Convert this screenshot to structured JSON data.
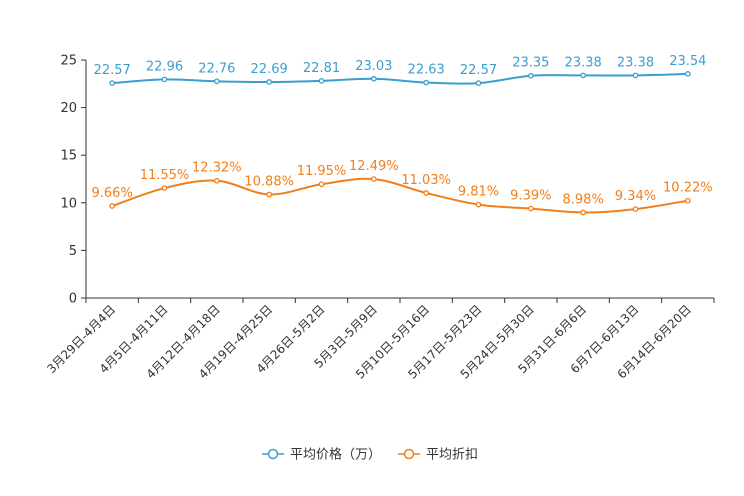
{
  "chart_data": {
    "type": "line",
    "title": "",
    "xlabel": "",
    "ylabel": "",
    "ylim": [
      0,
      25
    ],
    "yticks": [
      0,
      5,
      10,
      15,
      20,
      25
    ],
    "grid": false,
    "legend_position": "bottom-center",
    "categories": [
      "3月29日-4月4日",
      "4月5日-4月11日",
      "4月12日-4月18日",
      "4月19日-4月25日",
      "4月26日-5月2日",
      "5月3日-5月9日",
      "5月10日-5月16日",
      "5月17日-5月23日",
      "5月24日-5月30日",
      "5月31日-6月6日",
      "6月7日-6月13日",
      "6月14日-6月20日"
    ],
    "series": [
      {
        "name": "平均价格（万）",
        "color": "#3a9fcf",
        "values": [
          22.57,
          22.96,
          22.76,
          22.69,
          22.81,
          23.03,
          22.63,
          22.57,
          23.35,
          23.38,
          23.38,
          23.54
        ],
        "labels": [
          "22.57",
          "22.96",
          "22.76",
          "22.69",
          "22.81",
          "23.03",
          "22.63",
          "22.57",
          "23.35",
          "23.38",
          "23.38",
          "23.54"
        ]
      },
      {
        "name": "平均折扣",
        "color": "#f07e1b",
        "values": [
          9.66,
          11.55,
          12.32,
          10.88,
          11.95,
          12.49,
          11.03,
          9.81,
          9.39,
          8.98,
          9.34,
          10.22
        ],
        "labels": [
          "9.66%",
          "11.55%",
          "12.32%",
          "10.88%",
          "11.95%",
          "12.49%",
          "11.03%",
          "9.81%",
          "9.39%",
          "8.98%",
          "9.34%",
          "10.22%"
        ]
      }
    ]
  }
}
